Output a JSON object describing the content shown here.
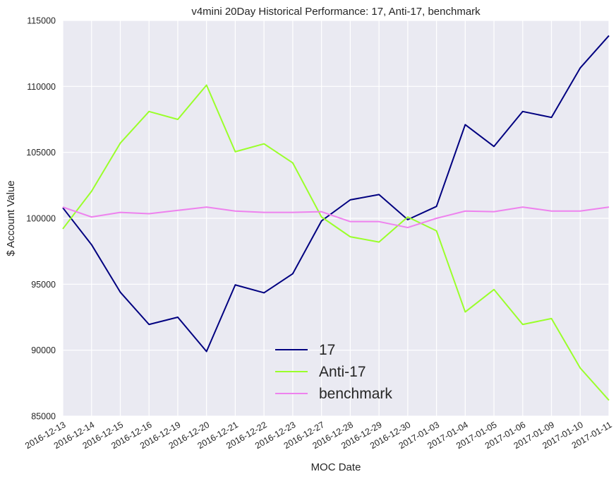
{
  "chart_data": {
    "type": "line",
    "title": "v4mini 20Day Historical Performance: 17, Anti-17, benchmark",
    "xlabel": "MOC Date",
    "ylabel": "$ Account Value",
    "ylim": [
      85000,
      115000
    ],
    "yticks": [
      "85000",
      "90000",
      "95000",
      "100000",
      "105000",
      "110000",
      "115000"
    ],
    "categories": [
      "2016-12-13",
      "2016-12-14",
      "2016-12-15",
      "2016-12-16",
      "2016-12-19",
      "2016-12-20",
      "2016-12-21",
      "2016-12-22",
      "2016-12-23",
      "2016-12-27",
      "2016-12-28",
      "2016-12-29",
      "2016-12-30",
      "2017-01-03",
      "2017-01-04",
      "2017-01-05",
      "2017-01-06",
      "2017-01-09",
      "2017-01-10",
      "2017-01-11"
    ],
    "grid": true,
    "legend_position": "lower-center",
    "series": [
      {
        "name": "17",
        "color": "#000080",
        "values": [
          100800,
          98000,
          94400,
          91950,
          92500,
          89900,
          94950,
          94350,
          95800,
          99800,
          101400,
          101800,
          99900,
          100900,
          107100,
          105450,
          108100,
          107650,
          111400,
          113850
        ]
      },
      {
        "name": "Anti-17",
        "color": "#9aff2a",
        "values": [
          99200,
          102050,
          105700,
          108100,
          107500,
          110100,
          105050,
          105650,
          104200,
          100100,
          98600,
          98200,
          100100,
          99050,
          92900,
          94600,
          91950,
          92400,
          88650,
          86200
        ]
      },
      {
        "name": "benchmark",
        "color": "#ee82ee",
        "values": [
          100850,
          100100,
          100450,
          100350,
          100600,
          100850,
          100550,
          100450,
          100450,
          100500,
          99750,
          99750,
          99300,
          100000,
          100550,
          100500,
          100850,
          100550,
          100550,
          100850
        ]
      }
    ]
  }
}
